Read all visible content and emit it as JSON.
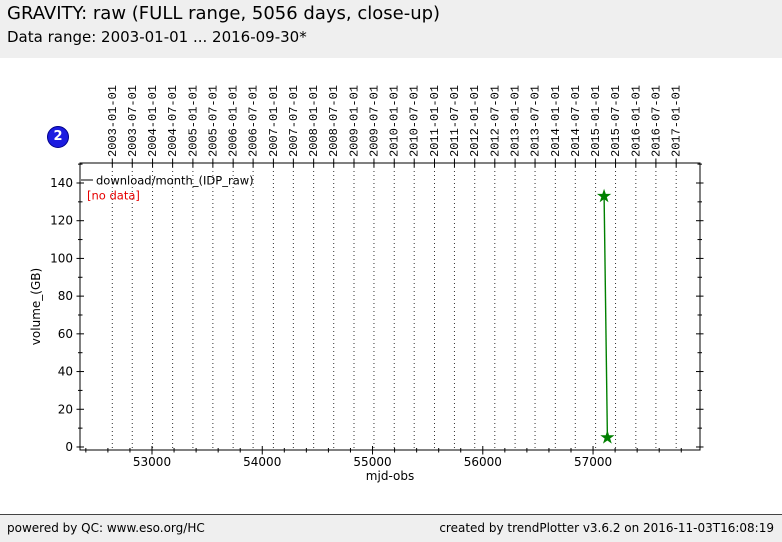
{
  "header": {
    "title": "GRAVITY: raw (FULL range, 5056 days, close-up)",
    "subtitle": "Data range: 2003-01-01 ... 2016-09-30*"
  },
  "badge": {
    "label": "2",
    "fill": "#1c1ce0",
    "border": "#00008b"
  },
  "footer": {
    "left": "powered by QC: www.eso.org/HC",
    "right": "created by trendPlotter v3.6.2 on 2016-11-03T16:08:19"
  },
  "chart_data": {
    "type": "line",
    "xlabel": "mjd-obs",
    "ylabel": "volume_(GB)",
    "xlim": [
      52347,
      57970
    ],
    "ylim": [
      -1.6,
      150.6
    ],
    "x_major_ticks": [
      53000,
      54000,
      55000,
      56000,
      57000
    ],
    "x_minor_step": 200,
    "y_major_ticks": [
      0,
      20,
      40,
      60,
      80,
      100,
      120,
      140
    ],
    "y_minor_step": 10,
    "grid": "vertical-dotted",
    "grid_color": "#333333",
    "legend": {
      "series_label": "download/month_(IDP_raw)",
      "status_label": "[no data]",
      "status_color": "#e60000"
    },
    "top_axis_dates": [
      {
        "label": "2003-01-01",
        "mjd": 52640
      },
      {
        "label": "2003-07-01",
        "mjd": 52821
      },
      {
        "label": "2004-01-01",
        "mjd": 53005
      },
      {
        "label": "2004-07-01",
        "mjd": 53187
      },
      {
        "label": "2005-01-01",
        "mjd": 53371
      },
      {
        "label": "2005-07-01",
        "mjd": 53552
      },
      {
        "label": "2006-01-01",
        "mjd": 53736
      },
      {
        "label": "2006-07-01",
        "mjd": 53917
      },
      {
        "label": "2007-01-01",
        "mjd": 54101
      },
      {
        "label": "2007-07-01",
        "mjd": 54282
      },
      {
        "label": "2008-01-01",
        "mjd": 54466
      },
      {
        "label": "2008-07-01",
        "mjd": 54648
      },
      {
        "label": "2009-01-01",
        "mjd": 54832
      },
      {
        "label": "2009-07-01",
        "mjd": 55013
      },
      {
        "label": "2010-01-01",
        "mjd": 55197
      },
      {
        "label": "2010-07-01",
        "mjd": 55378
      },
      {
        "label": "2011-01-01",
        "mjd": 55562
      },
      {
        "label": "2011-07-01",
        "mjd": 55743
      },
      {
        "label": "2012-01-01",
        "mjd": 55927
      },
      {
        "label": "2012-07-01",
        "mjd": 56109
      },
      {
        "label": "2013-01-01",
        "mjd": 56293
      },
      {
        "label": "2013-07-01",
        "mjd": 56474
      },
      {
        "label": "2014-01-01",
        "mjd": 56658
      },
      {
        "label": "2014-07-01",
        "mjd": 56839
      },
      {
        "label": "2015-01-01",
        "mjd": 57023
      },
      {
        "label": "2015-07-01",
        "mjd": 57204
      },
      {
        "label": "2016-01-01",
        "mjd": 57388
      },
      {
        "label": "2016-07-01",
        "mjd": 57570
      },
      {
        "label": "2017-01-01",
        "mjd": 57754
      }
    ],
    "series": [
      {
        "name": "download/month_(IDP_raw)",
        "color": "#008000",
        "marker": "star",
        "points": [
          {
            "x": 57100,
            "y": 133
          },
          {
            "x": 57130,
            "y": 5
          }
        ]
      }
    ]
  }
}
